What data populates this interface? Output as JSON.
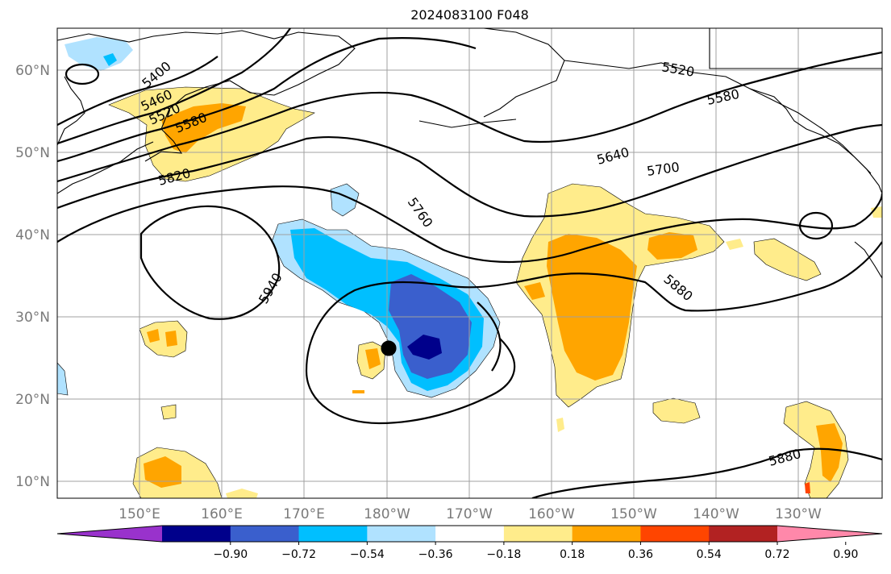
{
  "title": "2024083100 F048",
  "lat_labels": [
    "60°N",
    "50°N",
    "40°N",
    "30°N",
    "20°N",
    "10°N"
  ],
  "lon_labels": [
    "150°E",
    "160°E",
    "170°E",
    "180°W",
    "170°W",
    "160°W",
    "150°W",
    "140°W",
    "130°W"
  ],
  "colorbar": {
    "colors": [
      "#9932cc",
      "#00008b",
      "#3a5fcd",
      "#00bfff",
      "#b0e2ff",
      "#ffffff",
      "#ffec8b",
      "#ffa500",
      "#ff4500",
      "#b22222",
      "#ff88aa"
    ],
    "tick_labels": [
      "−0.90",
      "−0.72",
      "−0.54",
      "−0.36",
      "−0.18",
      "0.18",
      "0.36",
      "0.54",
      "0.72",
      "0.90"
    ]
  },
  "contour_labels": [
    "5400",
    "5460",
    "5520",
    "5580",
    "5820",
    "5940",
    "5760",
    "5520",
    "5580",
    "5640",
    "5700",
    "5880",
    "5880"
  ]
}
